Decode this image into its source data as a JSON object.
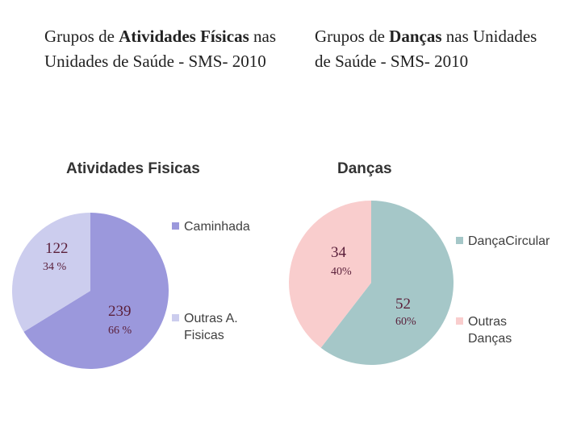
{
  "headings": {
    "left": {
      "prefix": "Grupos de ",
      "bold": "Atividades Físicas",
      "suffix": " nas Unidades de Saúde - SMS- 2010"
    },
    "right": {
      "prefix": "Grupos de ",
      "bold": "Danças",
      "suffix": " nas Unidades de Saúde - SMS- 2010"
    }
  },
  "chart_data": [
    {
      "type": "pie",
      "title": "Atividades Fisicas",
      "categories": [
        "Caminhada",
        "Outras A. Fisicas"
      ],
      "values": [
        239,
        122
      ],
      "percent_labels": [
        "66 %",
        "34 %"
      ],
      "colors": [
        "#9b98dc",
        "#cccdee"
      ],
      "legend": [
        {
          "label_lines": [
            "Caminhada"
          ],
          "color": "#9b98dc"
        },
        {
          "label_lines": [
            "Outras A.",
            "Fisicas"
          ],
          "color": "#cccdee"
        }
      ],
      "legend_position": "right"
    },
    {
      "type": "pie",
      "title": "Danças",
      "categories": [
        "DançaCircular",
        "Outras Danças"
      ],
      "values": [
        52,
        34
      ],
      "percent_labels": [
        "60%",
        "40%"
      ],
      "colors": [
        "#a5c7c8",
        "#f9cdcd"
      ],
      "legend": [
        {
          "label_lines": [
            "DançaCircular"
          ],
          "color": "#a5c7c8"
        },
        {
          "label_lines": [
            "Outras",
            "Danças"
          ],
          "color": "#f9cdcd"
        }
      ],
      "legend_position": "right"
    }
  ]
}
